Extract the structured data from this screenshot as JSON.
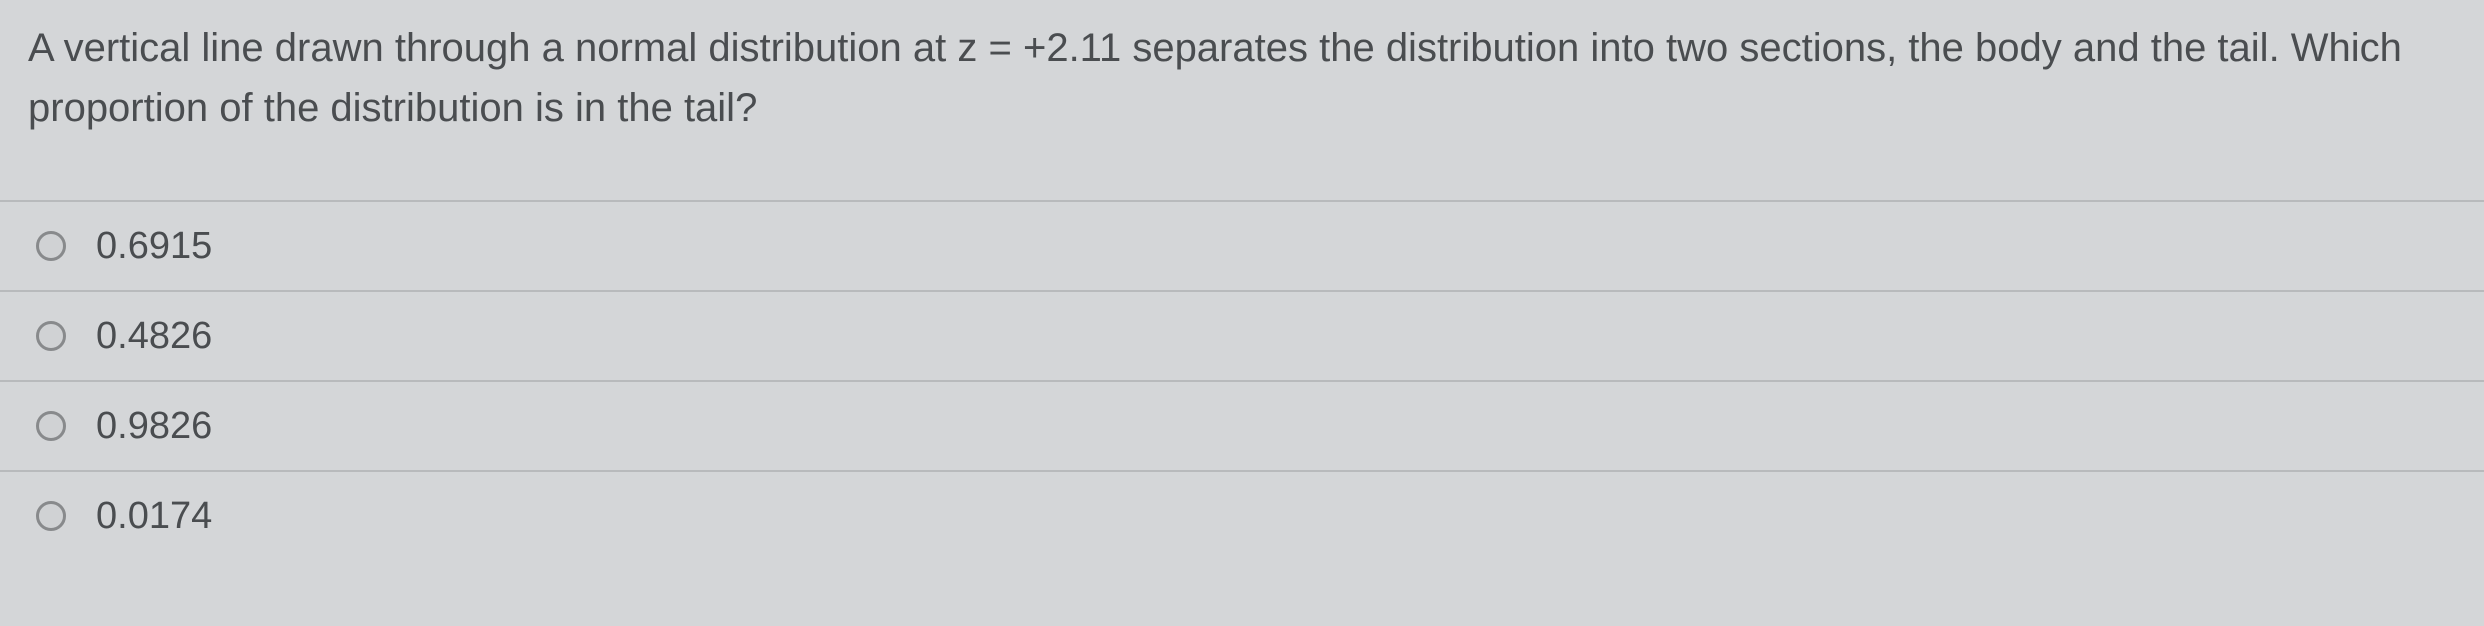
{
  "question": {
    "text": "A vertical line drawn through a normal distribution at z = +2.11 separates the distribution into two sections, the body and the tail. Which proportion of the distribution is in the tail?",
    "type": "multiple-choice",
    "font_size": 40,
    "text_color": "#4a4d50"
  },
  "options": [
    {
      "label": "0.6915",
      "selected": false
    },
    {
      "label": "0.4826",
      "selected": false
    },
    {
      "label": "0.9826",
      "selected": false
    },
    {
      "label": "0.0174",
      "selected": false
    }
  ],
  "styling": {
    "background_color": "#d4d6d8",
    "border_color": "#b8babc",
    "radio_border_color": "#888a8c",
    "option_font_size": 38
  }
}
